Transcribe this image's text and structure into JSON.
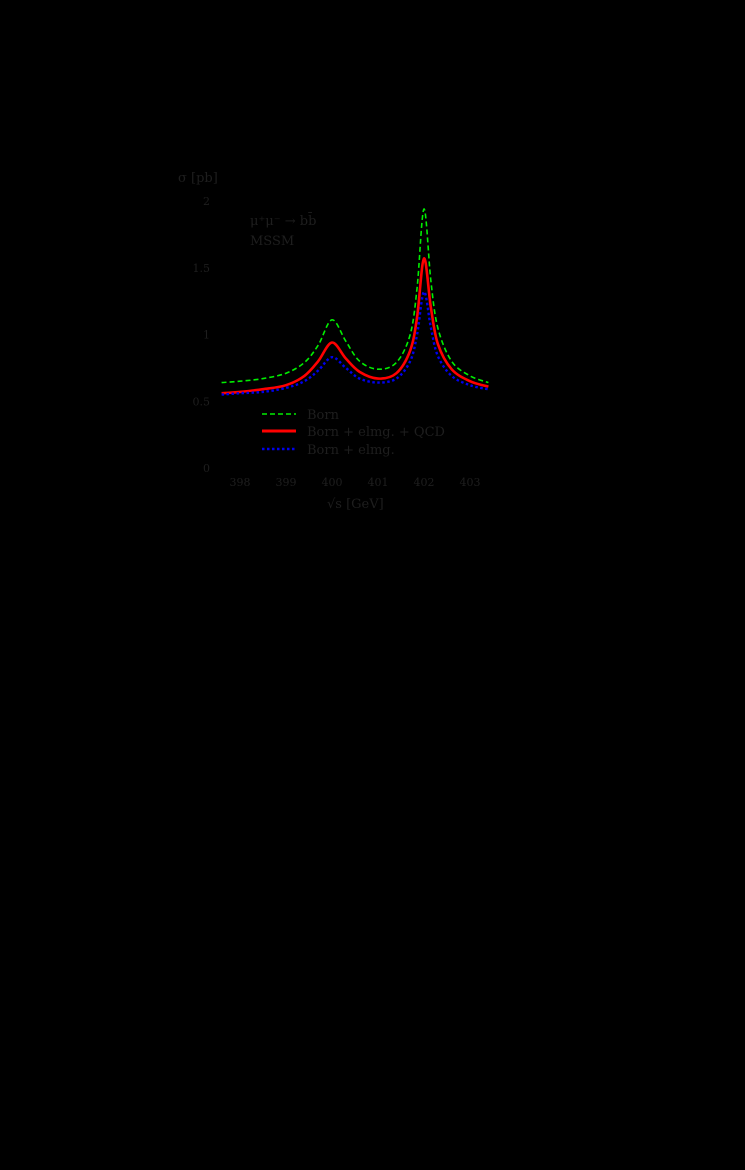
{
  "chart_data": {
    "type": "line",
    "title": "",
    "annotation": [
      "μ⁺μ⁻ → bb̄",
      "MSSM"
    ],
    "xlabel": "√s [GeV]",
    "ylabel": "σ [pb]",
    "xlim": [
      397.6,
      403.4
    ],
    "ylim": [
      0,
      2
    ],
    "grid": false,
    "legend_position": "lower-center-inside",
    "x_ticks": [
      "398",
      "399",
      "400",
      "401",
      "402",
      "403"
    ],
    "y_ticks": [
      "0",
      "0.5",
      "1",
      "1.5",
      "2"
    ],
    "x": [
      397.6,
      398.0,
      398.5,
      399.0,
      399.4,
      399.7,
      400.0,
      400.3,
      400.6,
      401.0,
      401.4,
      401.7,
      401.85,
      402.0,
      402.15,
      402.3,
      402.6,
      403.0,
      403.4
    ],
    "series": [
      {
        "name": "Born",
        "color": "#00ee00",
        "style": "dashed",
        "values": [
          0.64,
          0.65,
          0.67,
          0.71,
          0.79,
          0.92,
          1.11,
          0.95,
          0.8,
          0.74,
          0.79,
          1.0,
          1.35,
          1.94,
          1.4,
          1.05,
          0.8,
          0.69,
          0.64
        ]
      },
      {
        "name": "Born + elmg. + QCD",
        "color": "#ff0000",
        "style": "solid",
        "values": [
          0.56,
          0.57,
          0.59,
          0.62,
          0.69,
          0.8,
          0.94,
          0.82,
          0.72,
          0.67,
          0.71,
          0.88,
          1.13,
          1.57,
          1.2,
          0.93,
          0.74,
          0.65,
          0.61
        ]
      },
      {
        "name": "Born + elmg.",
        "color": "#0000ee",
        "style": "dotted",
        "values": [
          0.55,
          0.56,
          0.57,
          0.6,
          0.65,
          0.73,
          0.83,
          0.75,
          0.67,
          0.64,
          0.67,
          0.8,
          1.0,
          1.32,
          1.05,
          0.84,
          0.69,
          0.62,
          0.59
        ]
      }
    ]
  },
  "axis": {
    "ylabel": "σ [pb]",
    "xlabel": "√s [GeV]"
  },
  "annotation": {
    "process": "μ⁺μ⁻ → bb̄",
    "model": "MSSM"
  },
  "legend": [
    {
      "label": "Born",
      "color": "#00ee00"
    },
    {
      "label": "Born + elmg. + QCD",
      "color": "#ff0000"
    },
    {
      "label": "Born + elmg.",
      "color": "#0000ee"
    }
  ]
}
